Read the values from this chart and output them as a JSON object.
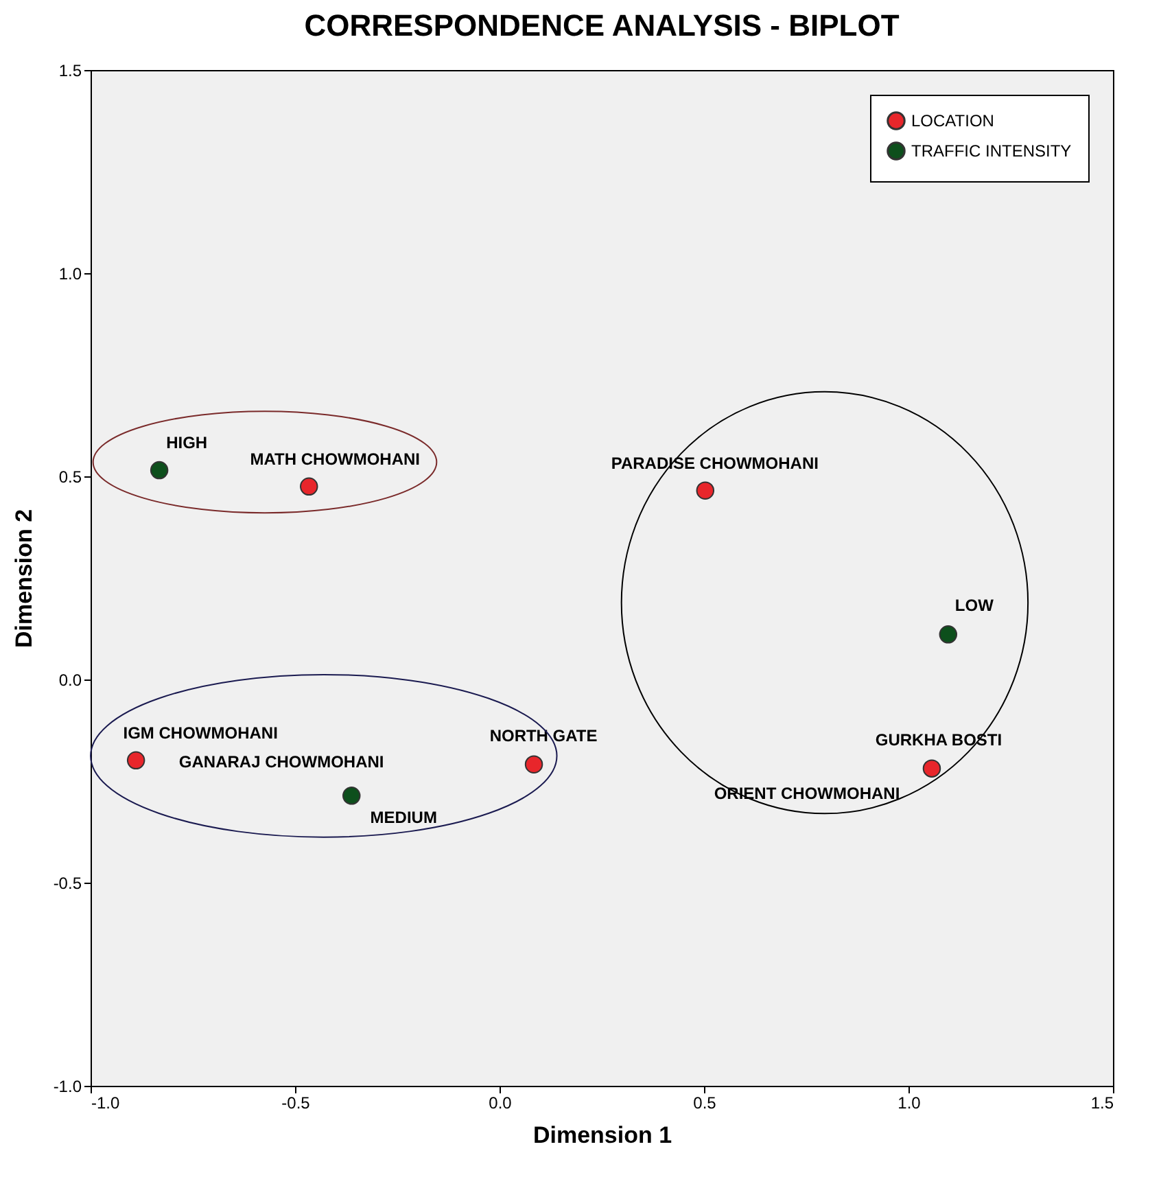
{
  "chart_data": {
    "type": "scatter",
    "title": "CORRESPONDENCE ANALYSIS - BIPLOT",
    "xlabel": "Dimension 1",
    "ylabel": "Dimension 2",
    "series": [
      {
        "name": "LOCATION",
        "color": "#e8262b",
        "x": [
          -0.466,
          0.503,
          1.057,
          0.084,
          -0.889
        ],
        "values": [
          0.475,
          0.465,
          -0.219,
          -0.209,
          -0.199
        ]
      },
      {
        "name": "TRAFFIC INTENSITY",
        "color": "#0d4f1c",
        "x": [
          -0.832,
          1.097,
          -0.362
        ],
        "values": [
          0.515,
          0.111,
          -0.286
        ]
      }
    ],
    "annotations": [
      {
        "text": "HIGH",
        "x": -0.832,
        "y": 0.515
      },
      {
        "text": "MATH CHOWMOHANI",
        "x": -0.466,
        "y": 0.475
      },
      {
        "text": "PARADISE CHOWMOHANI",
        "x": 0.503,
        "y": 0.465
      },
      {
        "text": "LOW",
        "x": 1.097,
        "y": 0.111
      },
      {
        "text": "GURKHA BOSTI",
        "x": 1.057,
        "y": -0.219
      },
      {
        "text": "ORIENT CHOWMOHANI",
        "x": 1.057,
        "y": -0.219
      },
      {
        "text": "NORTH GATE",
        "x": 0.084,
        "y": -0.209
      },
      {
        "text": "IGM CHOWMOHANI",
        "x": -0.889,
        "y": -0.199
      },
      {
        "text": "GANARAJ CHOWMOHANI",
        "x": -0.889,
        "y": -0.199
      },
      {
        "text": "MEDIUM",
        "x": -0.362,
        "y": -0.286
      }
    ],
    "xlim": [
      -1.0,
      1.5
    ],
    "ylim": [
      -1.0,
      1.5
    ],
    "xticks": [
      {
        "value": -1,
        "label": "-1.0"
      },
      {
        "value": -0.5,
        "label": "-0.5"
      },
      {
        "value": 0,
        "label": "0.0"
      },
      {
        "value": 0.5,
        "label": "0.5"
      },
      {
        "value": 1,
        "label": "1.0"
      },
      {
        "value": 1.5,
        "label": "1.5"
      }
    ],
    "yticks": [
      {
        "value": -1,
        "label": "-1.0"
      },
      {
        "value": -0.5,
        "label": "-0.5"
      },
      {
        "value": 0,
        "label": "0.0"
      },
      {
        "value": 0.5,
        "label": "0.5"
      },
      {
        "value": 1,
        "label": "1.0"
      },
      {
        "value": 1.5,
        "label": "1.5"
      }
    ],
    "grid": false,
    "legend": "top right",
    "marker": "circle"
  }
}
